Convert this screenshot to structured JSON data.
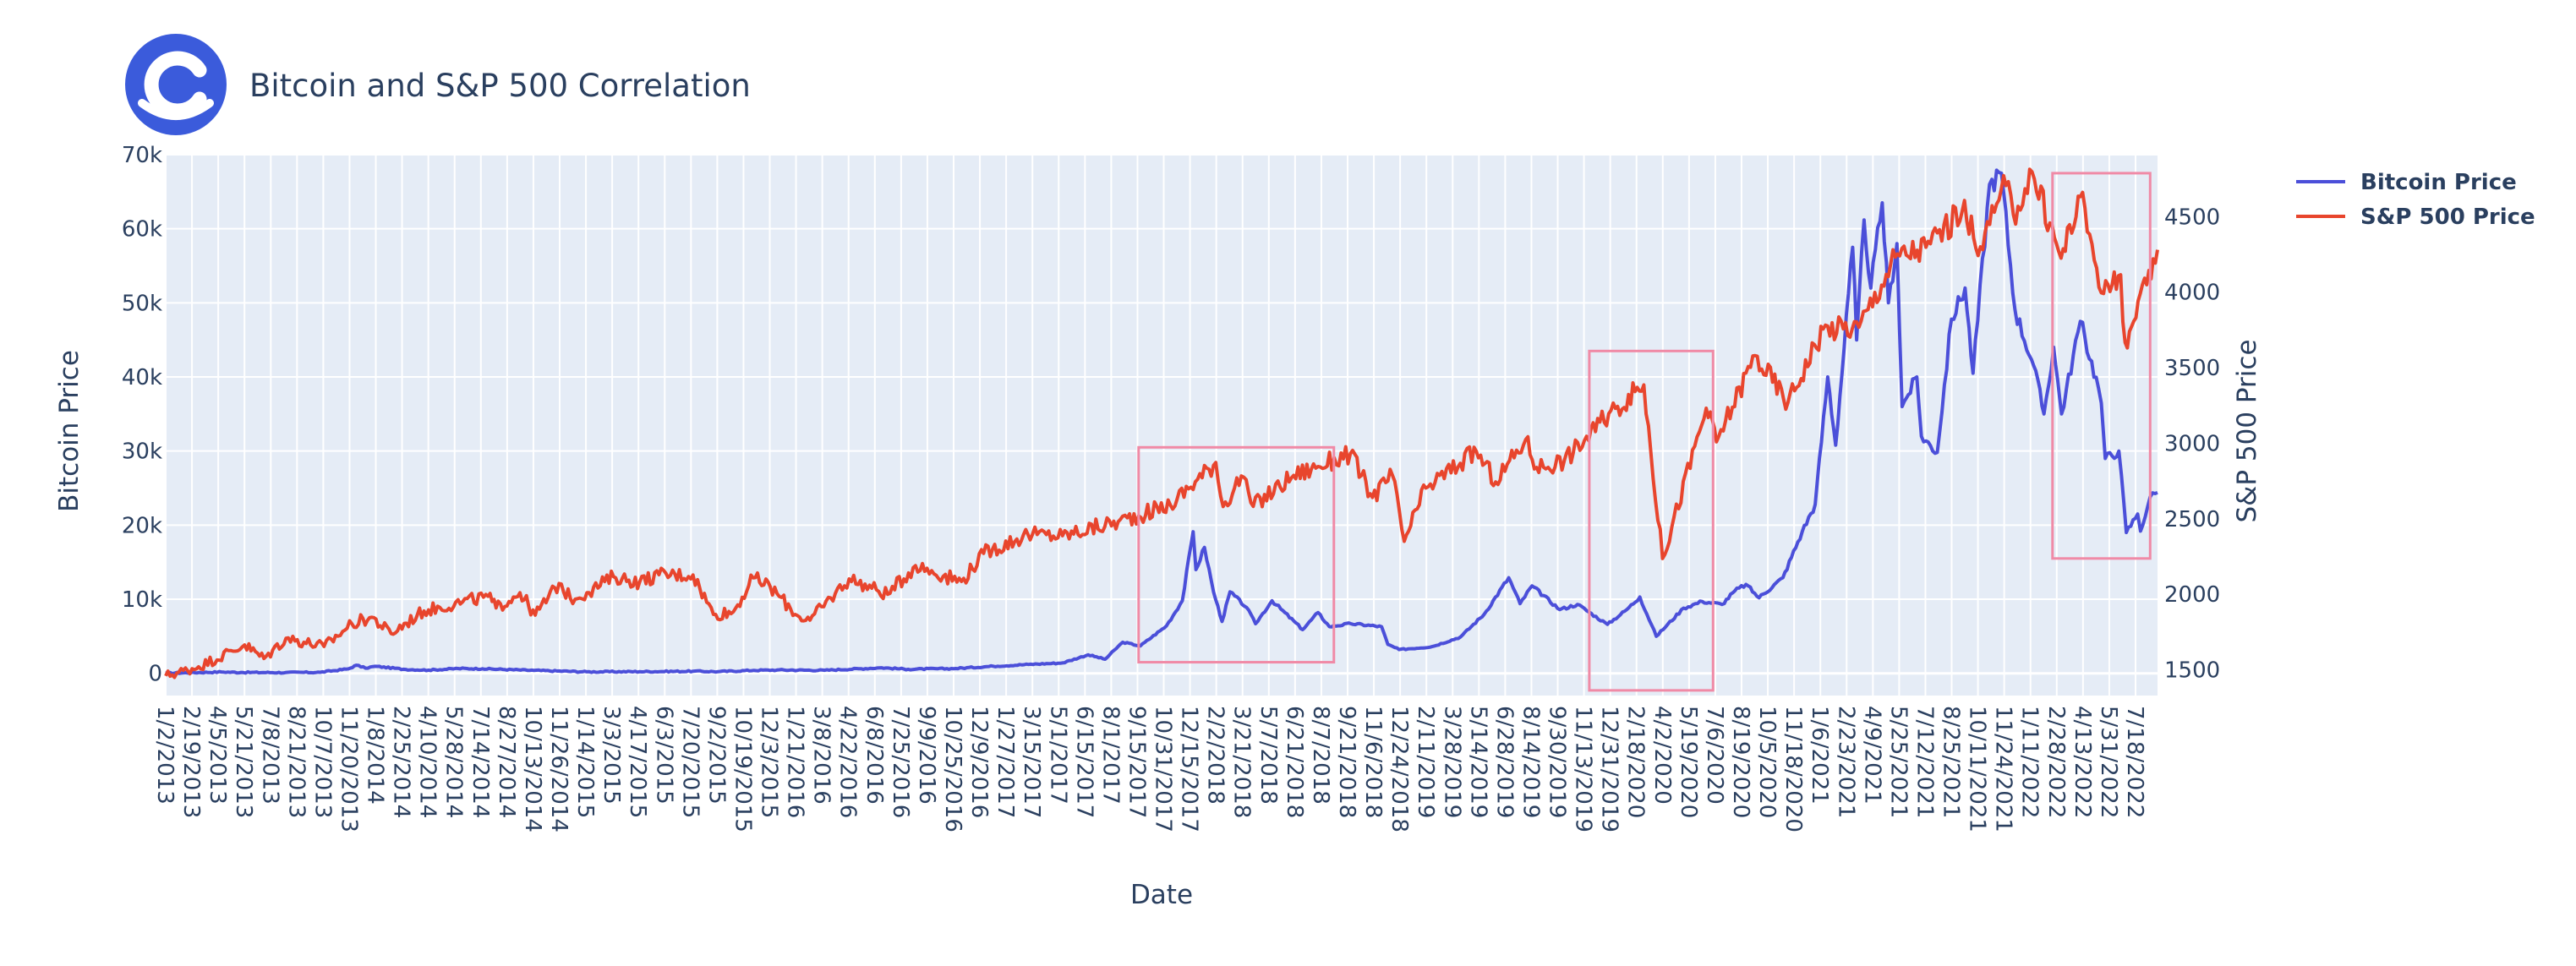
{
  "chart_data": {
    "type": "line",
    "title": "Bitcoin and S&P 500 Correlation",
    "xlabel": "Date",
    "ylabel": "Bitcoin Price",
    "y2label": "S&P 500 Price",
    "x_range": [
      "2013-01-02",
      "2022-08-12"
    ],
    "ylim": [
      -3000,
      70000
    ],
    "y2lim": [
      1330,
      4910
    ],
    "yticks": [
      0,
      10000,
      20000,
      30000,
      40000,
      50000,
      60000,
      70000
    ],
    "ytick_labels": [
      "0",
      "10k",
      "20k",
      "30k",
      "40k",
      "50k",
      "60k",
      "70k"
    ],
    "y2ticks": [
      1500,
      2000,
      2500,
      3000,
      3500,
      4000,
      4500
    ],
    "y2tick_labels": [
      "1500",
      "2000",
      "2500",
      "3000",
      "3500",
      "4000",
      "4500"
    ],
    "x_tick_labels": [
      "1/2/2013",
      "2/19/2013",
      "4/5/2013",
      "5/21/2013",
      "7/8/2013",
      "8/21/2013",
      "10/7/2013",
      "11/20/2013",
      "1/8/2014",
      "2/25/2014",
      "4/10/2014",
      "5/28/2014",
      "7/14/2014",
      "8/27/2014",
      "10/13/2014",
      "11/26/2014",
      "1/14/2015",
      "3/3/2015",
      "4/17/2015",
      "6/3/2015",
      "7/20/2015",
      "9/2/2015",
      "10/19/2015",
      "12/3/2015",
      "1/21/2016",
      "3/8/2016",
      "4/22/2016",
      "6/8/2016",
      "7/25/2016",
      "9/9/2016",
      "10/25/2016",
      "12/9/2016",
      "1/27/2017",
      "3/15/2017",
      "5/1/2017",
      "6/15/2017",
      "8/1/2017",
      "9/15/2017",
      "10/31/2017",
      "12/15/2017",
      "2/2/2018",
      "3/21/2018",
      "5/7/2018",
      "6/21/2018",
      "8/7/2018",
      "9/21/2018",
      "11/6/2018",
      "12/24/2018",
      "2/11/2019",
      "3/28/2019",
      "5/14/2019",
      "6/28/2019",
      "8/14/2019",
      "9/30/2019",
      "11/13/2019",
      "12/31/2019",
      "2/18/2020",
      "4/2/2020",
      "5/19/2020",
      "7/6/2020",
      "8/19/2020",
      "10/5/2020",
      "11/18/2020",
      "1/6/2021",
      "2/23/2021",
      "4/9/2021",
      "5/25/2021",
      "7/12/2021",
      "8/25/2021",
      "10/11/2021",
      "11/24/2021",
      "1/11/2022",
      "2/28/2022",
      "4/13/2022",
      "5/31/2022",
      "7/18/2022"
    ],
    "grid": true,
    "legend_position": "top-right",
    "series": [
      {
        "name": "Bitcoin Price",
        "axis": "y",
        "color": "#4b4fd9",
        "points": [
          [
            "2013-01-02",
            13
          ],
          [
            "2013-04-10",
            180
          ],
          [
            "2013-05-15",
            120
          ],
          [
            "2013-08-01",
            100
          ],
          [
            "2013-10-01",
            140
          ],
          [
            "2013-11-20",
            600
          ],
          [
            "2013-12-04",
            1100
          ],
          [
            "2013-12-20",
            700
          ],
          [
            "2014-01-06",
            950
          ],
          [
            "2014-02-25",
            550
          ],
          [
            "2014-04-10",
            430
          ],
          [
            "2014-06-01",
            650
          ],
          [
            "2014-07-14",
            620
          ],
          [
            "2014-10-13",
            390
          ],
          [
            "2015-01-14",
            200
          ],
          [
            "2015-04-17",
            230
          ],
          [
            "2015-07-20",
            280
          ],
          [
            "2015-09-02",
            230
          ],
          [
            "2015-11-04",
            400
          ],
          [
            "2015-12-15",
            450
          ],
          [
            "2016-03-08",
            410
          ],
          [
            "2016-06-16",
            750
          ],
          [
            "2016-08-02",
            550
          ],
          [
            "2016-10-25",
            650
          ],
          [
            "2016-12-30",
            960
          ],
          [
            "2017-03-02",
            1200
          ],
          [
            "2017-05-01",
            1400
          ],
          [
            "2017-06-15",
            2500
          ],
          [
            "2017-07-15",
            1900
          ],
          [
            "2017-08-15",
            4200
          ],
          [
            "2017-09-15",
            3700
          ],
          [
            "2017-10-31",
            6400
          ],
          [
            "2017-11-28",
            9800
          ],
          [
            "2017-12-17",
            19100
          ],
          [
            "2017-12-22",
            14000
          ],
          [
            "2018-01-06",
            17000
          ],
          [
            "2018-01-22",
            11000
          ],
          [
            "2018-02-06",
            7000
          ],
          [
            "2018-02-20",
            11000
          ],
          [
            "2018-03-21",
            8900
          ],
          [
            "2018-04-06",
            6700
          ],
          [
            "2018-05-05",
            9800
          ],
          [
            "2018-06-28",
            5900
          ],
          [
            "2018-07-25",
            8200
          ],
          [
            "2018-08-14",
            6300
          ],
          [
            "2018-09-21",
            6700
          ],
          [
            "2018-11-14",
            6300
          ],
          [
            "2018-11-25",
            3900
          ],
          [
            "2018-12-15",
            3200
          ],
          [
            "2019-02-11",
            3600
          ],
          [
            "2019-04-02",
            4900
          ],
          [
            "2019-05-14",
            8000
          ],
          [
            "2019-06-26",
            12900
          ],
          [
            "2019-07-16",
            9400
          ],
          [
            "2019-08-06",
            11800
          ],
          [
            "2019-09-24",
            8600
          ],
          [
            "2019-10-25",
            9300
          ],
          [
            "2019-12-17",
            6600
          ],
          [
            "2020-01-20",
            8600
          ],
          [
            "2020-02-12",
            10300
          ],
          [
            "2020-03-12",
            5000
          ],
          [
            "2020-04-29",
            8800
          ],
          [
            "2020-06-01",
            9700
          ],
          [
            "2020-07-06",
            9300
          ],
          [
            "2020-07-28",
            11100
          ],
          [
            "2020-08-17",
            12000
          ],
          [
            "2020-09-09",
            10200
          ],
          [
            "2020-10-21",
            12900
          ],
          [
            "2020-11-24",
            19100
          ],
          [
            "2020-12-17",
            22800
          ],
          [
            "2021-01-08",
            40000
          ],
          [
            "2021-01-22",
            30800
          ],
          [
            "2021-02-21",
            57500
          ],
          [
            "2021-02-28",
            45000
          ],
          [
            "2021-03-13",
            61200
          ],
          [
            "2021-03-25",
            52000
          ],
          [
            "2021-04-14",
            63500
          ],
          [
            "2021-04-25",
            50000
          ],
          [
            "2021-05-10",
            58000
          ],
          [
            "2021-05-19",
            36000
          ],
          [
            "2021-06-14",
            40000
          ],
          [
            "2021-06-22",
            32000
          ],
          [
            "2021-07-20",
            29800
          ],
          [
            "2021-08-14",
            47800
          ],
          [
            "2021-09-07",
            52000
          ],
          [
            "2021-09-21",
            40500
          ],
          [
            "2021-10-20",
            66000
          ],
          [
            "2021-11-10",
            67500
          ],
          [
            "2021-12-04",
            49000
          ],
          [
            "2022-01-06",
            41500
          ],
          [
            "2022-01-24",
            35000
          ],
          [
            "2022-02-10",
            44000
          ],
          [
            "2022-02-24",
            35000
          ],
          [
            "2022-03-29",
            47500
          ],
          [
            "2022-04-30",
            38500
          ],
          [
            "2022-05-05",
            36500
          ],
          [
            "2022-05-12",
            29000
          ],
          [
            "2022-06-05",
            30000
          ],
          [
            "2022-06-18",
            19000
          ],
          [
            "2022-07-08",
            21500
          ],
          [
            "2022-07-13",
            19200
          ],
          [
            "2022-07-30",
            23800
          ],
          [
            "2022-08-12",
            24400
          ]
        ]
      },
      {
        "name": "S&P 500 Price",
        "axis": "y2",
        "color": "#e8452d",
        "points": [
          [
            "2013-01-02",
            1460
          ],
          [
            "2013-03-01",
            1520
          ],
          [
            "2013-05-21",
            1665
          ],
          [
            "2013-06-24",
            1575
          ],
          [
            "2013-08-02",
            1709
          ],
          [
            "2013-10-08",
            1655
          ],
          [
            "2013-11-26",
            1805
          ],
          [
            "2013-12-31",
            1848
          ],
          [
            "2014-02-03",
            1740
          ],
          [
            "2014-04-02",
            1890
          ],
          [
            "2014-06-09",
            1950
          ],
          [
            "2014-07-24",
            1987
          ],
          [
            "2014-08-07",
            1910
          ],
          [
            "2014-09-18",
            2011
          ],
          [
            "2014-10-15",
            1862
          ],
          [
            "2014-11-26",
            2072
          ],
          [
            "2014-12-16",
            1972
          ],
          [
            "2015-01-14",
            2011
          ],
          [
            "2015-03-02",
            2117
          ],
          [
            "2015-04-17",
            2081
          ],
          [
            "2015-05-21",
            2130
          ],
          [
            "2015-07-20",
            2128
          ],
          [
            "2015-08-25",
            1867
          ],
          [
            "2015-09-29",
            1884
          ],
          [
            "2015-11-03",
            2109
          ],
          [
            "2015-12-03",
            2050
          ],
          [
            "2016-01-20",
            1859
          ],
          [
            "2016-02-11",
            1829
          ],
          [
            "2016-04-20",
            2102
          ],
          [
            "2016-06-27",
            2000
          ],
          [
            "2016-08-15",
            2190
          ],
          [
            "2016-11-04",
            2085
          ],
          [
            "2016-12-13",
            2271
          ],
          [
            "2017-03-01",
            2396
          ],
          [
            "2017-05-01",
            2388
          ],
          [
            "2017-08-07",
            2480
          ],
          [
            "2017-11-07",
            2591
          ],
          [
            "2018-01-26",
            2873
          ],
          [
            "2018-02-08",
            2581
          ],
          [
            "2018-03-12",
            2783
          ],
          [
            "2018-04-02",
            2582
          ],
          [
            "2018-06-12",
            2787
          ],
          [
            "2018-07-25",
            2846
          ],
          [
            "2018-09-20",
            2931
          ],
          [
            "2018-10-29",
            2641
          ],
          [
            "2018-12-03",
            2790
          ],
          [
            "2018-12-24",
            2351
          ],
          [
            "2019-01-31",
            2704
          ],
          [
            "2019-04-30",
            2946
          ],
          [
            "2019-06-03",
            2744
          ],
          [
            "2019-07-26",
            3025
          ],
          [
            "2019-08-14",
            2840
          ],
          [
            "2019-10-02",
            2887
          ],
          [
            "2019-12-31",
            3231
          ],
          [
            "2020-02-19",
            3386
          ],
          [
            "2020-03-23",
            2237
          ],
          [
            "2020-06-08",
            3232
          ],
          [
            "2020-06-26",
            3009
          ],
          [
            "2020-09-02",
            3580
          ],
          [
            "2020-10-30",
            3270
          ],
          [
            "2020-12-31",
            3756
          ],
          [
            "2021-03-04",
            3768
          ],
          [
            "2021-05-07",
            4232
          ],
          [
            "2021-06-30",
            4297
          ],
          [
            "2021-09-02",
            4537
          ],
          [
            "2021-10-04",
            4300
          ],
          [
            "2021-11-18",
            4705
          ],
          [
            "2021-12-01",
            4513
          ],
          [
            "2022-01-03",
            4796
          ],
          [
            "2022-02-23",
            4225
          ],
          [
            "2022-03-29",
            4632
          ],
          [
            "2022-05-09",
            3991
          ],
          [
            "2022-06-08",
            4115
          ],
          [
            "2022-06-16",
            3666
          ],
          [
            "2022-07-05",
            3831
          ],
          [
            "2022-08-12",
            4280
          ]
        ]
      }
    ],
    "annotation_boxes": [
      {
        "x0": "2017-09-12",
        "x1": "2018-08-22",
        "y0": 1500,
        "y1": 30500,
        "color": "#f08aa6"
      },
      {
        "x0": "2019-11-15",
        "x1": "2020-06-20",
        "y0": -2300,
        "y1": 43500,
        "color": "#f08aa6"
      },
      {
        "x0": "2022-02-08",
        "x1": "2022-07-30",
        "y0": 15500,
        "y1": 67500,
        "color": "#f08aa6"
      }
    ]
  },
  "legend": {
    "items": [
      {
        "label": "Bitcoin Price",
        "color": "#4b4fd9"
      },
      {
        "label": "S&P 500 Price",
        "color": "#e8452d"
      }
    ]
  },
  "logo": {
    "color": "#3b5bdb"
  }
}
